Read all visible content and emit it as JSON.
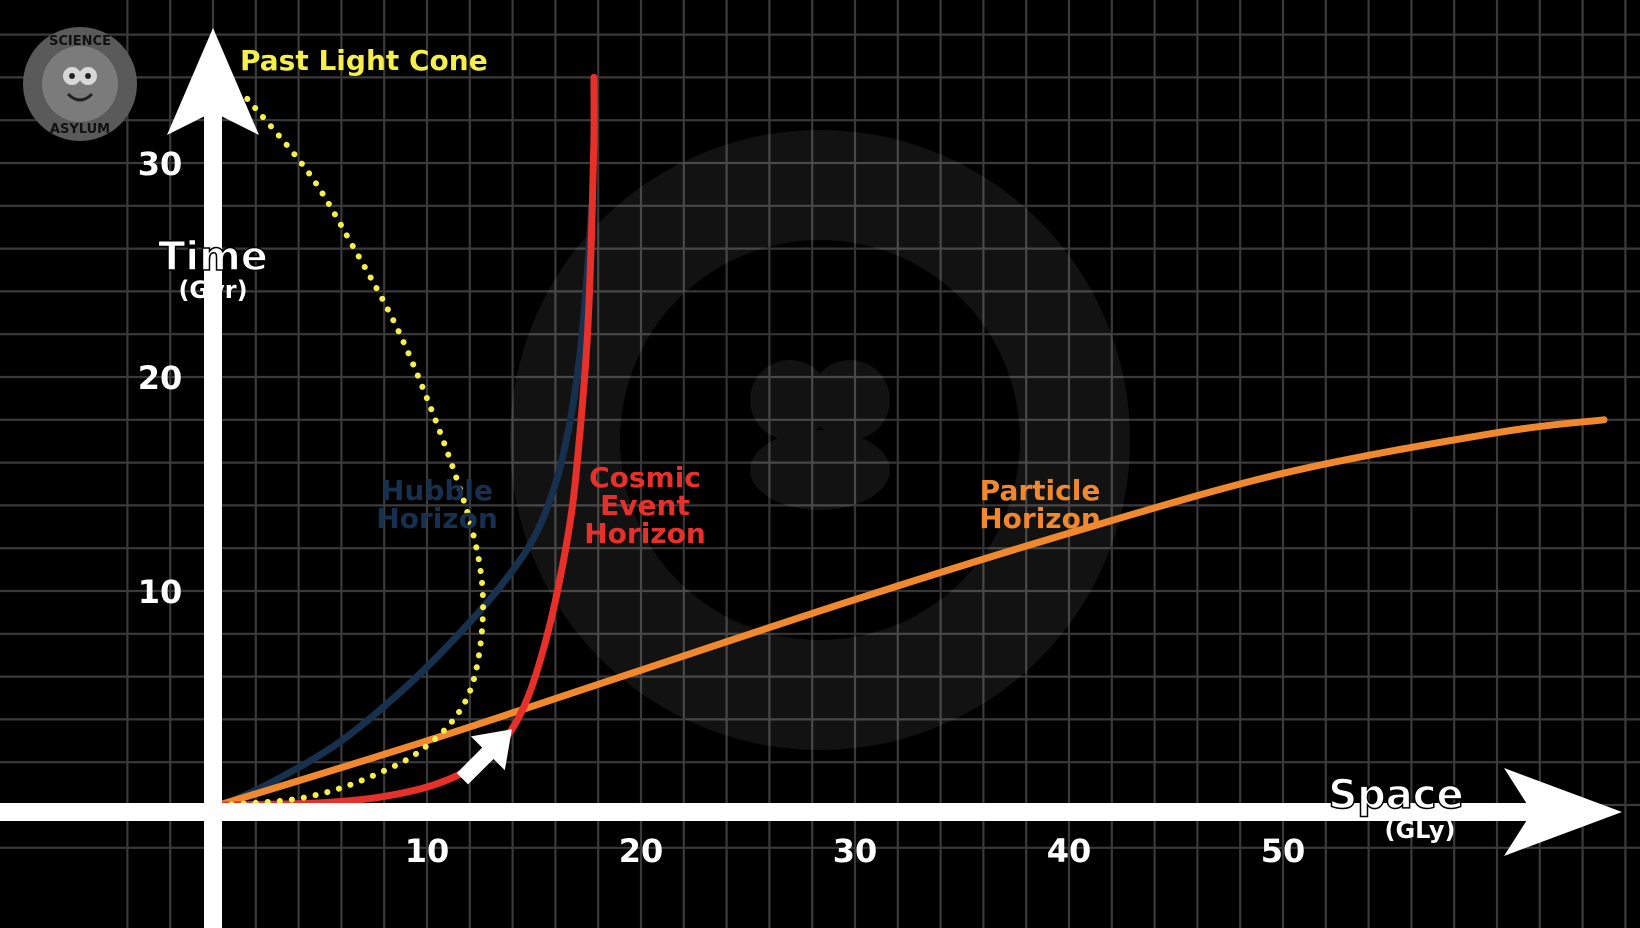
{
  "logo": {
    "text_top": "SCIENCE",
    "text_bottom": "ASYLUM"
  },
  "chart_data": {
    "type": "line",
    "xlabel": "Space",
    "xunit": "(GLy)",
    "ylabel": "Time",
    "yunit": "(Gyr)",
    "xlim": [
      -5,
      65
    ],
    "ylim": [
      -2,
      35
    ],
    "x_ticks": [
      10,
      20,
      30,
      40,
      50
    ],
    "y_ticks": [
      10,
      20,
      30
    ],
    "grid": true,
    "series": [
      {
        "name": "Past Light Cone",
        "label_lines": [
          "Past Light Cone"
        ],
        "style": "dotted",
        "color": "#f5ef4e",
        "points": [
          [
            0.3,
            0
          ],
          [
            2,
            0.1
          ],
          [
            4,
            0.3
          ],
          [
            6,
            0.8
          ],
          [
            8,
            1.6
          ],
          [
            9.5,
            2.4
          ],
          [
            11,
            3.7
          ],
          [
            12,
            5.3
          ],
          [
            12.5,
            7.5
          ],
          [
            12.6,
            10
          ],
          [
            12.2,
            12.5
          ],
          [
            11.3,
            15.5
          ],
          [
            10,
            19
          ],
          [
            8.5,
            22.5
          ],
          [
            6.6,
            26
          ],
          [
            4.5,
            29.5
          ],
          [
            1.6,
            33
          ]
        ]
      },
      {
        "name": "Hubble Horizon",
        "label_lines": [
          "Hubble",
          "Horizon"
        ],
        "style": "solid",
        "color": "#17304d",
        "points": [
          [
            0.5,
            0
          ],
          [
            3,
            1.2
          ],
          [
            6,
            3
          ],
          [
            9,
            5.5
          ],
          [
            11.5,
            8
          ],
          [
            13.5,
            10.3
          ],
          [
            15,
            12.5
          ],
          [
            16,
            15
          ],
          [
            16.7,
            18
          ],
          [
            17.2,
            21.5
          ],
          [
            17.5,
            25
          ],
          [
            17.7,
            28
          ]
        ]
      },
      {
        "name": "Cosmic Event Horizon",
        "label_lines": [
          "Cosmic",
          "Event",
          "Horizon"
        ],
        "style": "solid",
        "color": "#e8302a",
        "points": [
          [
            0.5,
            0
          ],
          [
            5,
            0.1
          ],
          [
            8,
            0.4
          ],
          [
            10.5,
            1
          ],
          [
            12.5,
            2
          ],
          [
            13.8,
            3.3
          ],
          [
            14.7,
            5
          ],
          [
            15.5,
            7.5
          ],
          [
            16.2,
            10.5
          ],
          [
            16.8,
            14
          ],
          [
            17.2,
            18
          ],
          [
            17.5,
            22
          ],
          [
            17.7,
            27
          ],
          [
            17.8,
            31
          ],
          [
            17.8,
            34
          ]
        ]
      },
      {
        "name": "Particle Horizon",
        "label_lines": [
          "Particle",
          "Horizon"
        ],
        "style": "solid",
        "color": "#f0882f",
        "points": [
          [
            0.3,
            0
          ],
          [
            10,
            3
          ],
          [
            20,
            6.3
          ],
          [
            30,
            9.6
          ],
          [
            40,
            12.7
          ],
          [
            50,
            15.5
          ],
          [
            60,
            17.4
          ],
          [
            65,
            18
          ]
        ]
      }
    ],
    "annotations": [
      {
        "type": "arrow",
        "text": "",
        "points_to": [
          13.5,
          4.1
        ]
      }
    ]
  }
}
